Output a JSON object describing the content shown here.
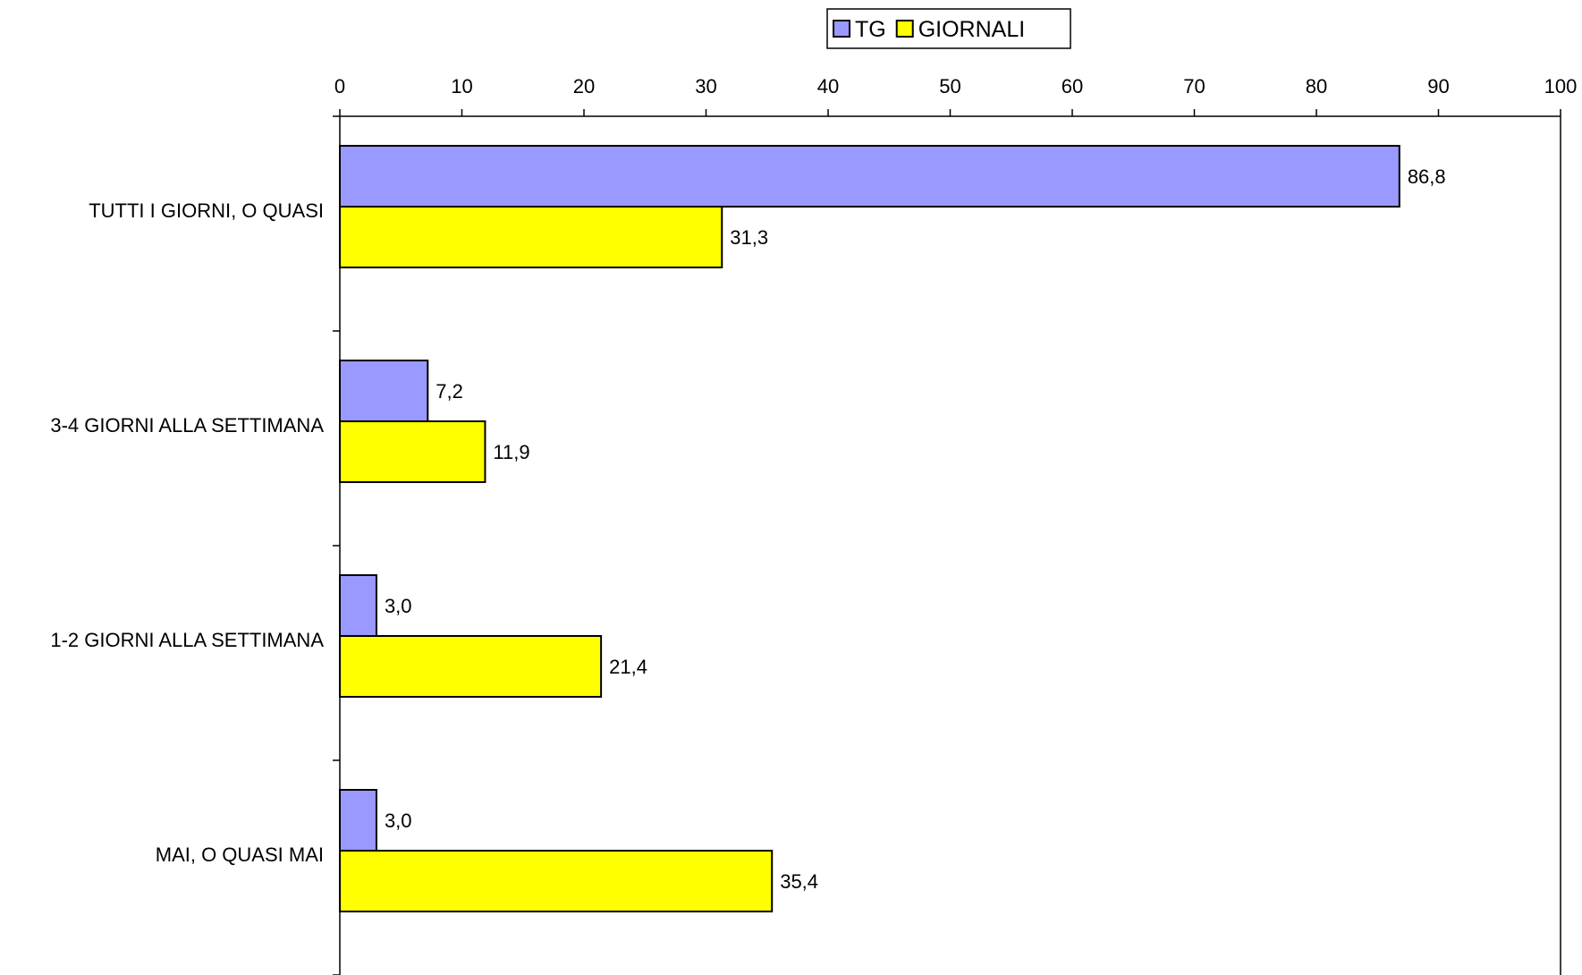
{
  "chart_data": {
    "type": "bar",
    "orientation": "horizontal",
    "categories": [
      "TUTTI I GIORNI, O QUASI",
      "3-4 GIORNI ALLA SETTIMANA",
      "1-2 GIORNI ALLA SETTIMANA",
      "MAI, O QUASI MAI"
    ],
    "series": [
      {
        "name": "TG",
        "color": "#9999FF",
        "values": [
          86.8,
          7.2,
          3.0,
          3.0
        ],
        "labels": [
          "86,8",
          "7,2",
          "3,0",
          "3,0"
        ]
      },
      {
        "name": "GIORNALI",
        "color": "#FFFF00",
        "values": [
          31.3,
          11.9,
          21.4,
          35.4
        ],
        "labels": [
          "31,3",
          "11,9",
          "21,4",
          "35,4"
        ]
      }
    ],
    "xlim": [
      0,
      100
    ],
    "xticks": [
      "0",
      "10",
      "20",
      "30",
      "40",
      "50",
      "60",
      "70",
      "80",
      "90",
      "100"
    ],
    "x_axis_position": "top",
    "grid": false,
    "legend_position": "top-center",
    "title": "",
    "xlabel": "",
    "ylabel": ""
  }
}
